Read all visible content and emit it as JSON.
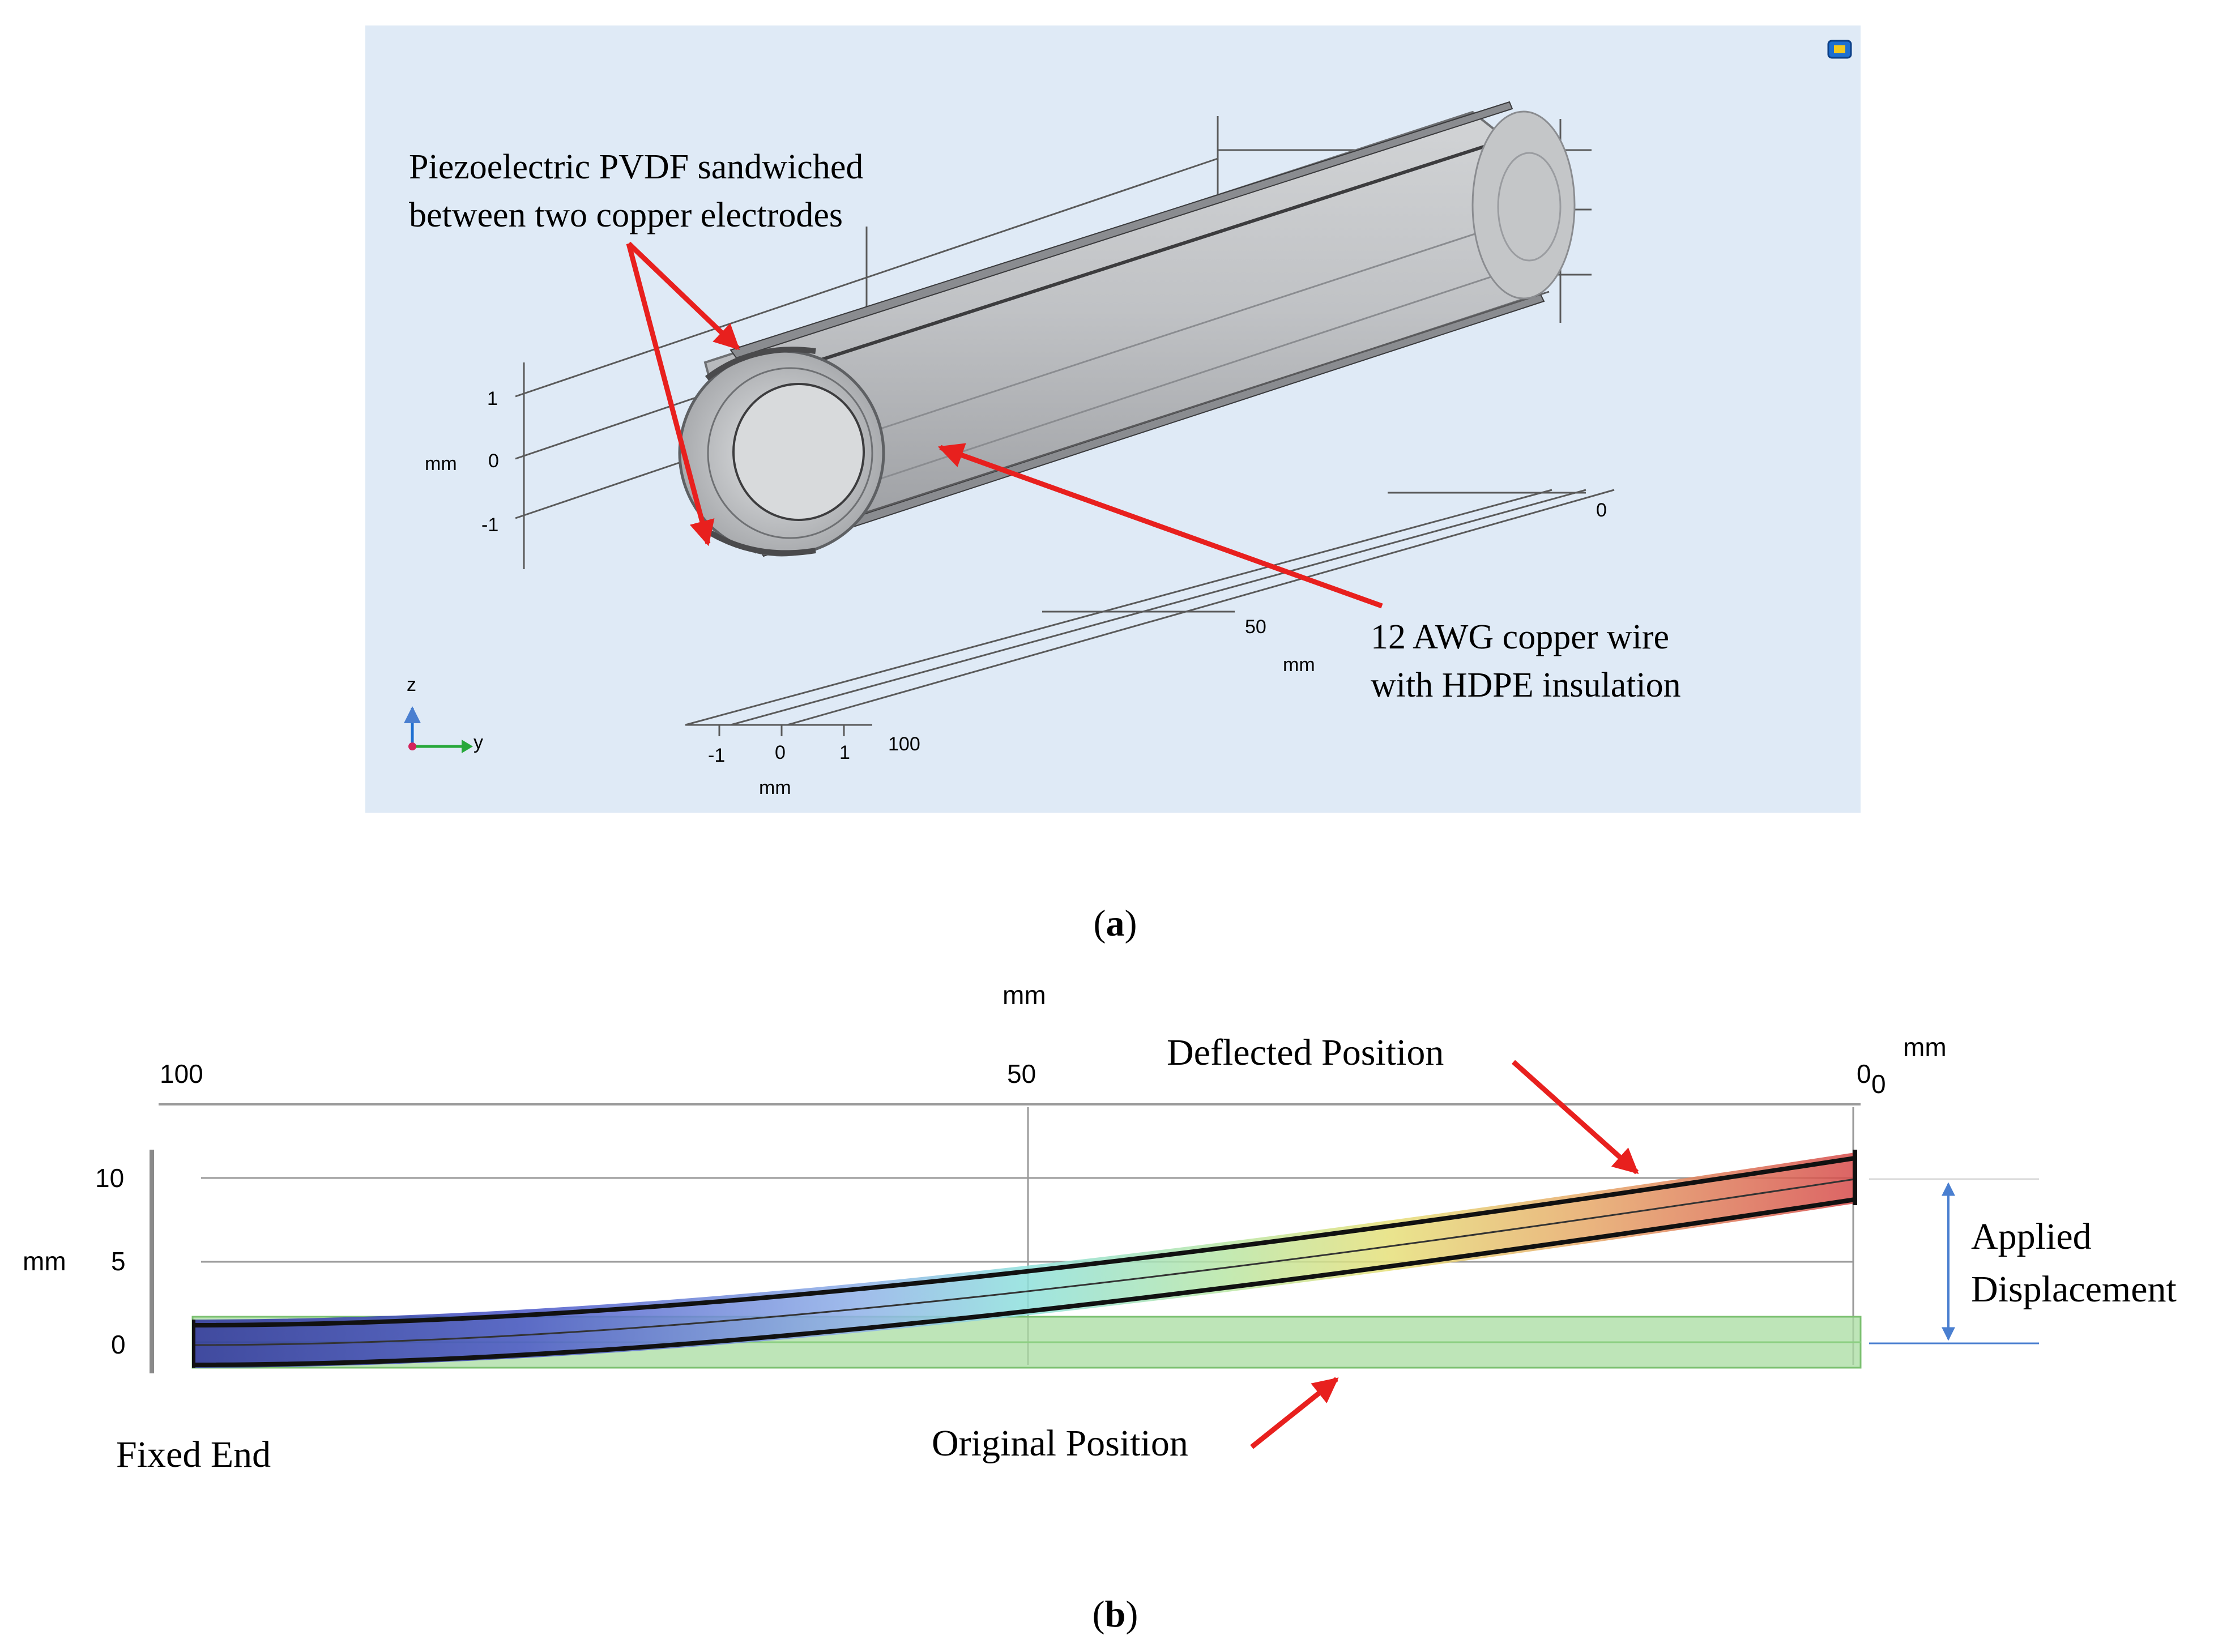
{
  "panel_a": {
    "annotation_pvdf": [
      "Piezoelectric PVDF sandwiched",
      "between two copper electrodes"
    ],
    "annotation_wire": [
      "12 AWG copper wire",
      "with HDPE insulation"
    ],
    "z_axis": {
      "unit": "mm",
      "ticks": [
        "1",
        "0",
        "-1"
      ]
    },
    "x_axis": {
      "unit": "mm",
      "ticks": [
        "0",
        "50",
        "100"
      ]
    },
    "y_axis": {
      "unit": "mm",
      "ticks": [
        "-1",
        "0",
        "1"
      ]
    },
    "triad": {
      "z_label": "z",
      "y_label": "y"
    },
    "caption_letter": "a",
    "colors": {
      "background": "#dfeaf6",
      "tube": "#b9bbbe",
      "arrow": "#e8201e"
    }
  },
  "panel_b": {
    "x_axis": {
      "unit_left": "mm",
      "unit_right": "mm",
      "ticks": [
        "100",
        "50",
        "0",
        "0"
      ]
    },
    "y_axis": {
      "unit": "mm",
      "ticks": [
        "10",
        "5",
        "0"
      ]
    },
    "deflection_mm": 10,
    "labels": {
      "deflected": "Deflected Position",
      "original": "Original Position",
      "applied": [
        "Applied",
        "Displacement"
      ],
      "fixed": "Fixed End"
    },
    "caption_letter": "b",
    "colors": {
      "original_fill": "#a8dca0",
      "dimension": "#4a7fd0",
      "arrow": "#e8201e"
    }
  }
}
